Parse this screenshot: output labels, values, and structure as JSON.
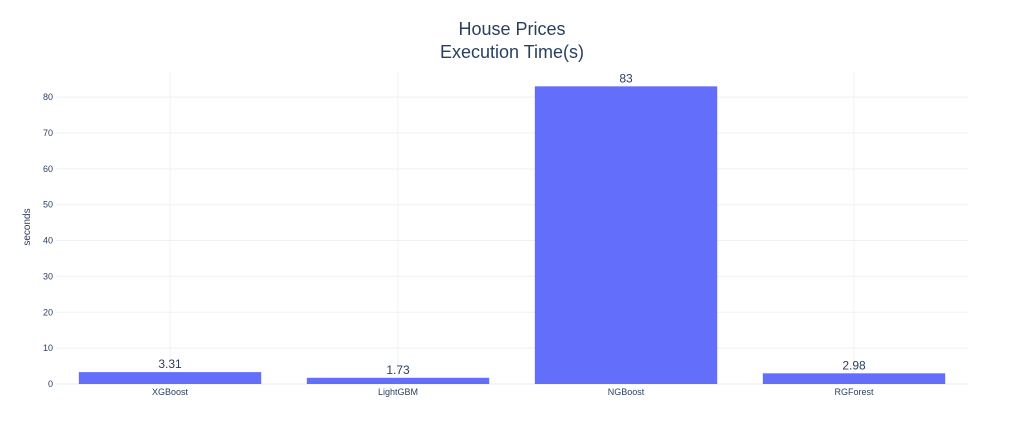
{
  "chart_data": {
    "type": "bar",
    "title_lines": [
      "House Prices",
      "Execution Time(s)"
    ],
    "xlabel": "",
    "ylabel": "seconds",
    "categories": [
      "XGBoost",
      "LightGBM",
      "NGBoost",
      "RGForest"
    ],
    "values": [
      3.31,
      1.73,
      83,
      2.98
    ],
    "data_labels": [
      "3.31",
      "1.73",
      "83",
      "2.98"
    ],
    "ylim": [
      0,
      87
    ],
    "yticks": [
      0,
      10,
      20,
      30,
      40,
      50,
      60,
      70,
      80
    ],
    "ytick_labels": [
      "0",
      "10",
      "20",
      "30",
      "40",
      "50",
      "60",
      "70",
      "80"
    ],
    "bar_color": "#636efa",
    "grid_color": "#eef0f4",
    "text_color": "#2a3f5f",
    "grid": true,
    "legend": "none"
  }
}
